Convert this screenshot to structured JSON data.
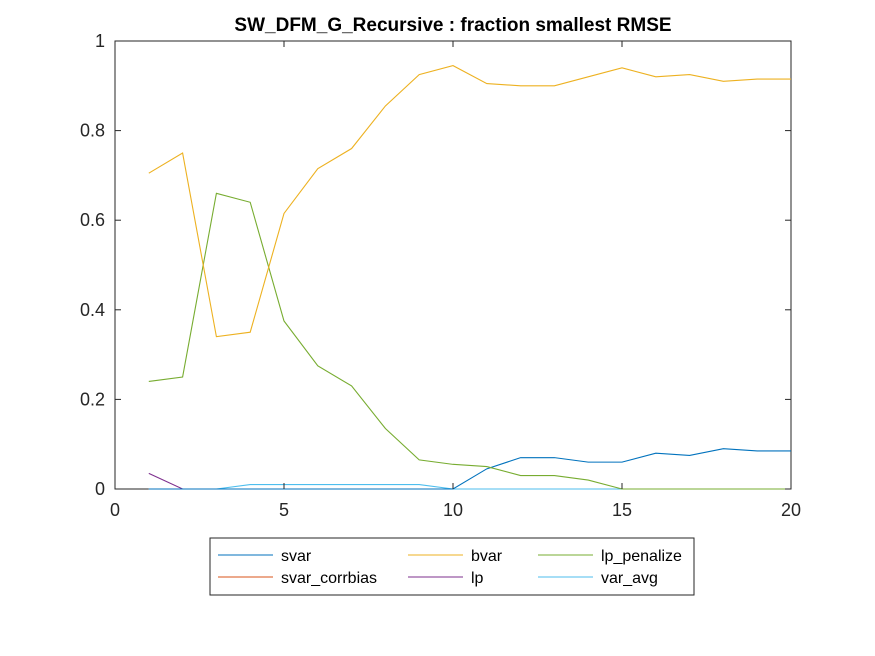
{
  "chart_data": {
    "type": "line",
    "title": "SW_DFM_G_Recursive : fraction smallest RMSE",
    "xlabel": "",
    "ylabel": "",
    "xlim": [
      0,
      20
    ],
    "ylim": [
      0,
      1
    ],
    "xticks": [
      0,
      5,
      10,
      15,
      20
    ],
    "yticks": [
      0,
      0.2,
      0.4,
      0.6,
      0.8,
      1
    ],
    "ytick_labels": [
      "0",
      "0.2",
      "0.4",
      "0.6",
      "0.8",
      "1"
    ],
    "grid": false,
    "legend_placement": "below",
    "x": [
      1,
      2,
      3,
      4,
      5,
      6,
      7,
      8,
      9,
      10,
      11,
      12,
      13,
      14,
      15,
      16,
      17,
      18,
      19,
      20
    ],
    "series": [
      {
        "name": "svar",
        "color": "#0072BD",
        "values": [
          0,
          0,
          0,
          0,
          0,
          0,
          0,
          0,
          0,
          0,
          0.045,
          0.07,
          0.07,
          0.06,
          0.06,
          0.08,
          0.075,
          0.09,
          0.085,
          0.085
        ]
      },
      {
        "name": "svar_corrbias",
        "color": "#D95319",
        "values": [
          0,
          0,
          0,
          0,
          0,
          0,
          0,
          0,
          0,
          0,
          0,
          0,
          0,
          0,
          0,
          0,
          0,
          0,
          0,
          0
        ]
      },
      {
        "name": "bvar",
        "color": "#EDB120",
        "values": [
          0.705,
          0.75,
          0.34,
          0.35,
          0.615,
          0.715,
          0.76,
          0.855,
          0.925,
          0.945,
          0.905,
          0.9,
          0.9,
          0.92,
          0.94,
          0.92,
          0.925,
          0.91,
          0.915,
          0.915
        ]
      },
      {
        "name": "lp",
        "color": "#7E2F8E",
        "values": [
          0.035,
          0,
          0,
          0,
          0,
          0,
          0,
          0,
          0,
          0,
          0,
          0,
          0,
          0,
          0,
          0,
          0,
          0,
          0,
          0
        ]
      },
      {
        "name": "lp_penalize",
        "color": "#77AC30",
        "values": [
          0.24,
          0.25,
          0.66,
          0.64,
          0.375,
          0.275,
          0.23,
          0.135,
          0.065,
          0.055,
          0.05,
          0.03,
          0.03,
          0.02,
          0,
          0,
          0,
          0,
          0,
          0
        ]
      },
      {
        "name": "var_avg",
        "color": "#4DBEEE",
        "values": [
          0,
          0,
          0,
          0.01,
          0.01,
          0.01,
          0.01,
          0.01,
          0.01,
          0,
          0,
          0,
          0,
          0,
          0,
          0,
          0,
          0,
          0,
          0
        ]
      }
    ],
    "legend_order": [
      [
        "svar",
        "bvar",
        "lp_penalize"
      ],
      [
        "svar_corrbias",
        "lp",
        "var_avg"
      ]
    ]
  }
}
